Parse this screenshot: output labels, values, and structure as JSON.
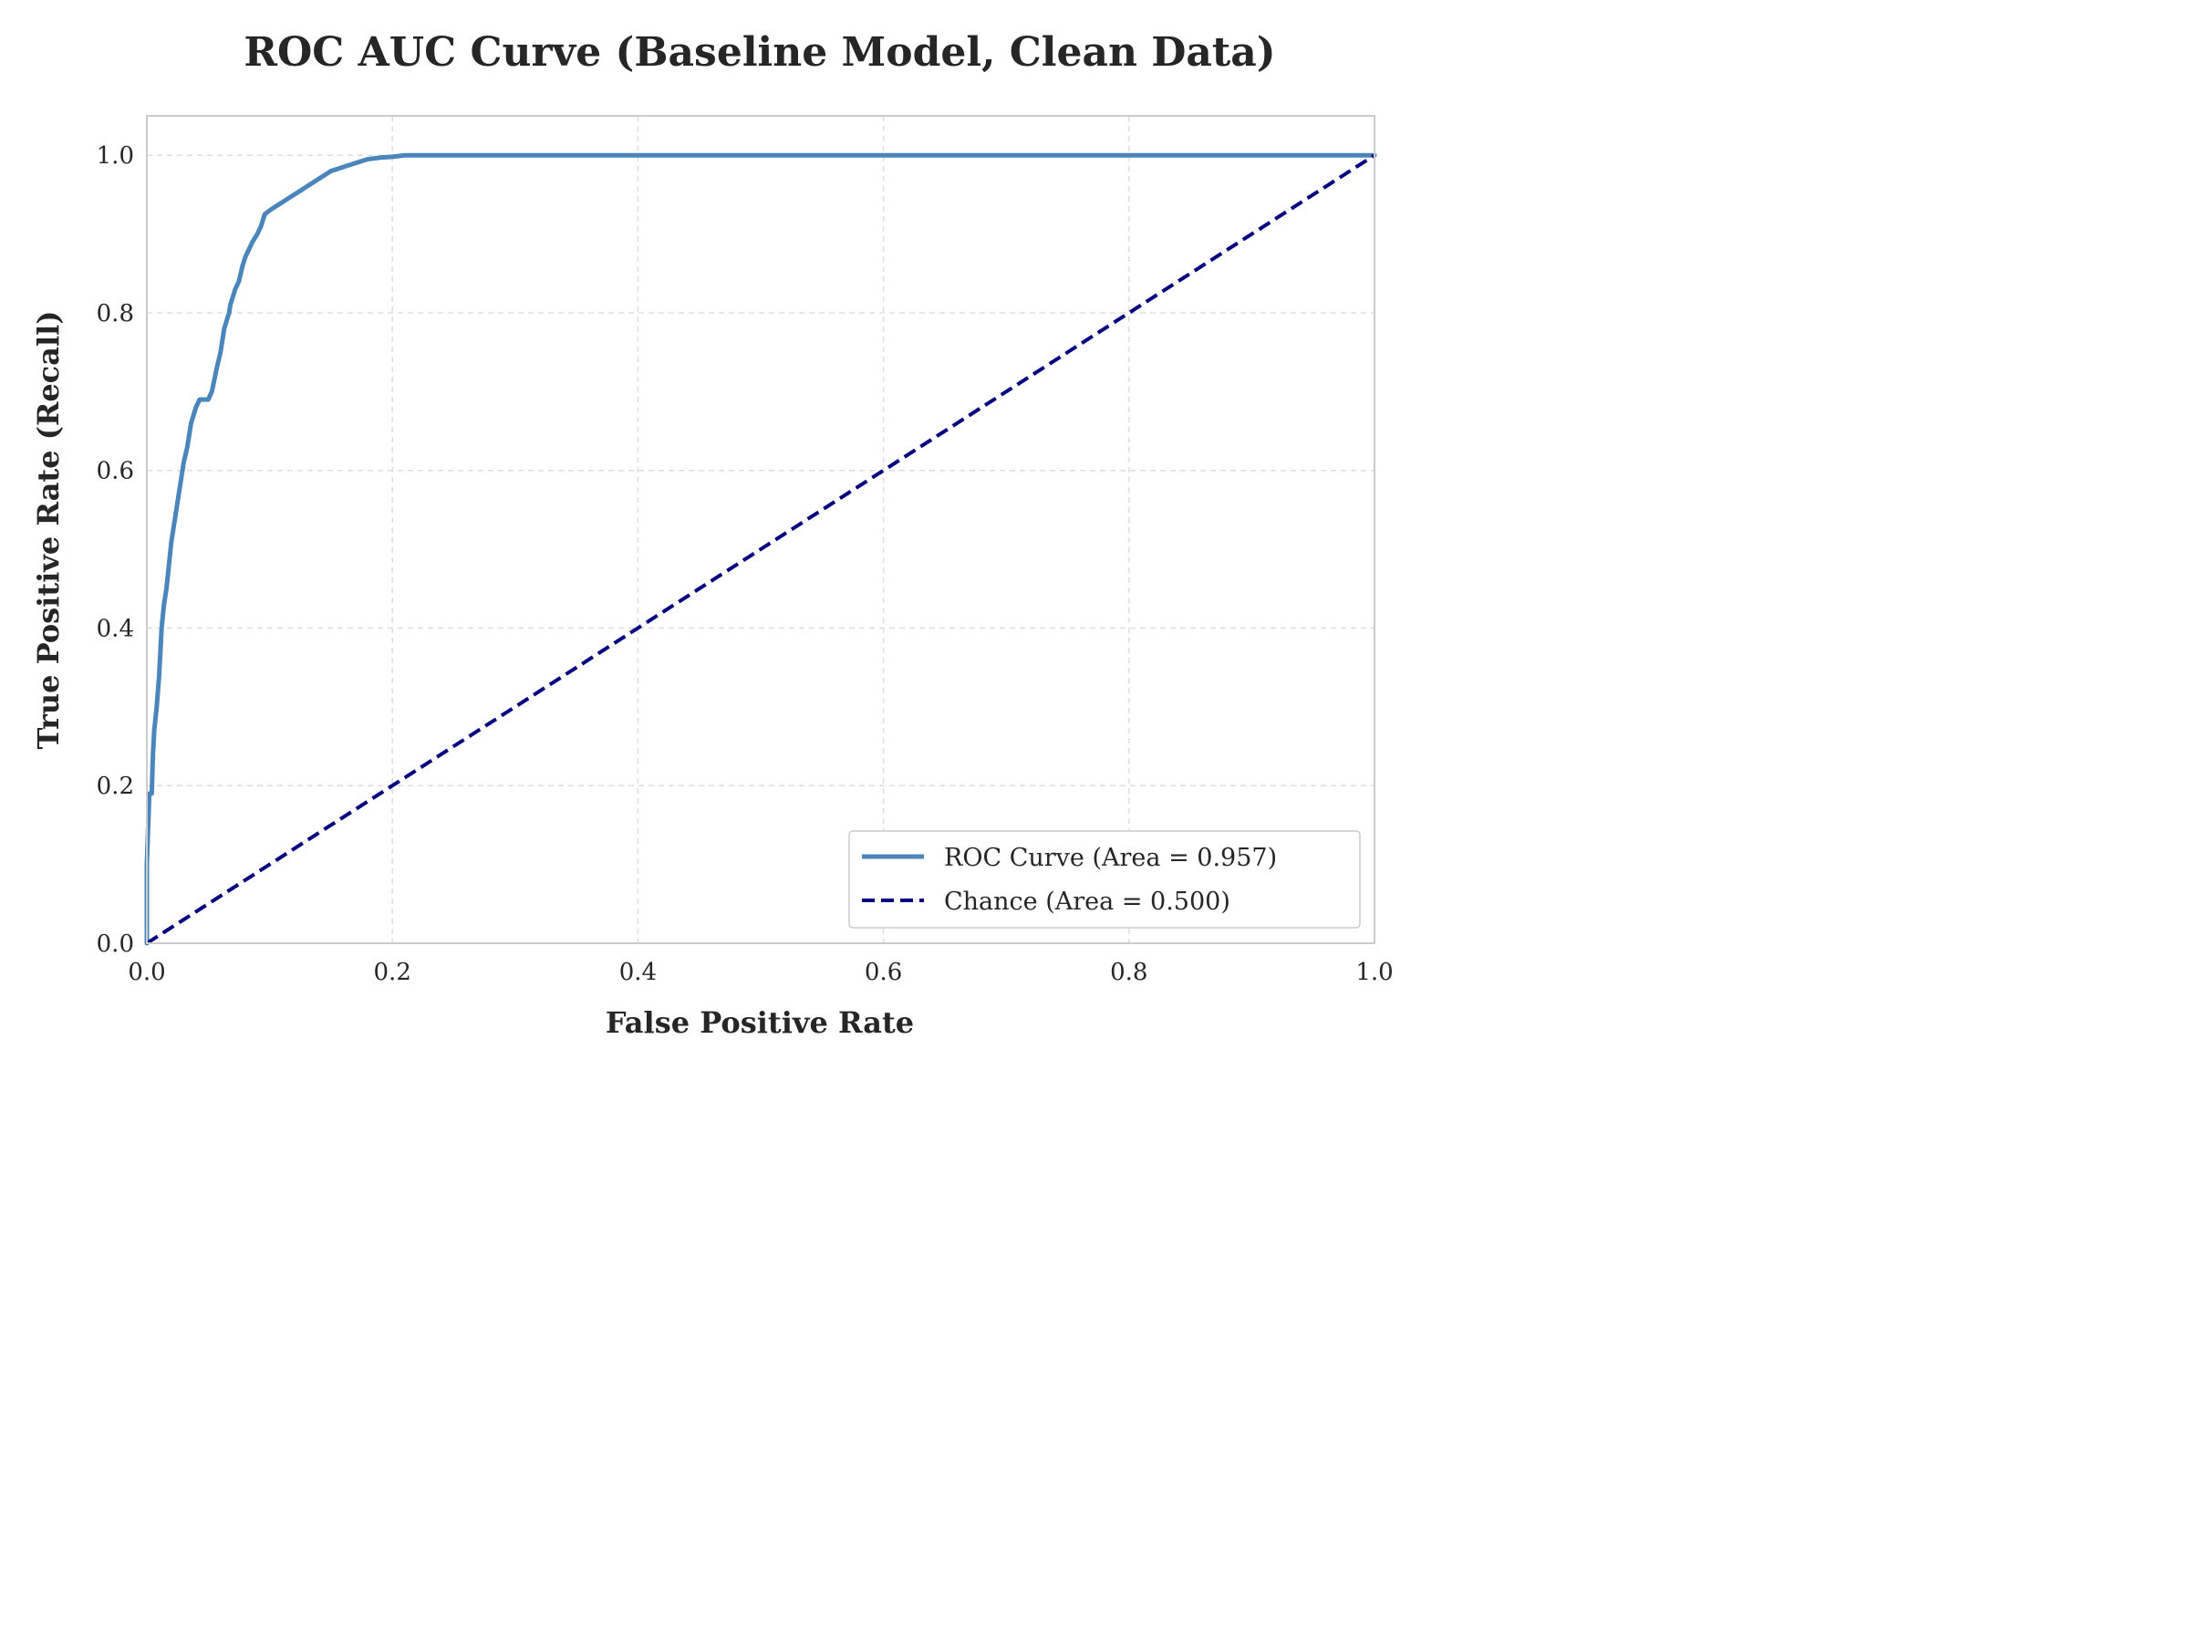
{
  "colors": {
    "roc": "#4a86bb",
    "chance": "#000080",
    "grid": "#dddddd",
    "frame": "#cccccc",
    "text": "#262626"
  },
  "chart_data": {
    "type": "line",
    "title": "ROC AUC Curve (Baseline Model, Clean Data)",
    "xlabel": "False Positive Rate",
    "ylabel": "True Positive Rate (Recall)",
    "xlim": [
      0.0,
      1.0
    ],
    "ylim": [
      0.0,
      1.05
    ],
    "x_ticks": [
      "0.0",
      "0.2",
      "0.4",
      "0.6",
      "0.8",
      "1.0"
    ],
    "y_ticks": [
      "0.0",
      "0.2",
      "0.4",
      "0.6",
      "0.8",
      "1.0"
    ],
    "grid": true,
    "grid_style": "dashed",
    "legend_position": "lower-right",
    "series": [
      {
        "name": "ROC Curve (Area = 0.957)",
        "style": "solid",
        "color": "#4a86bb",
        "x": [
          0.0,
          0.0,
          0.002,
          0.004,
          0.005,
          0.006,
          0.008,
          0.01,
          0.012,
          0.014,
          0.016,
          0.018,
          0.02,
          0.023,
          0.026,
          0.03,
          0.033,
          0.036,
          0.04,
          0.043,
          0.046,
          0.05,
          0.053,
          0.057,
          0.06,
          0.063,
          0.065,
          0.067,
          0.068,
          0.07,
          0.072,
          0.075,
          0.078,
          0.08,
          0.083,
          0.086,
          0.09,
          0.093,
          0.096,
          0.1,
          0.105,
          0.11,
          0.115,
          0.12,
          0.125,
          0.13,
          0.14,
          0.15,
          0.16,
          0.17,
          0.18,
          0.19,
          0.2,
          0.205,
          0.21,
          0.22,
          0.25,
          0.3,
          0.4,
          0.5,
          0.6,
          0.7,
          0.8,
          0.9,
          1.0
        ],
        "y": [
          0.0,
          0.1,
          0.19,
          0.19,
          0.24,
          0.27,
          0.3,
          0.34,
          0.4,
          0.43,
          0.45,
          0.48,
          0.51,
          0.54,
          0.57,
          0.61,
          0.63,
          0.66,
          0.68,
          0.69,
          0.69,
          0.69,
          0.7,
          0.73,
          0.75,
          0.78,
          0.79,
          0.8,
          0.81,
          0.82,
          0.83,
          0.84,
          0.86,
          0.87,
          0.88,
          0.89,
          0.9,
          0.91,
          0.925,
          0.93,
          0.935,
          0.94,
          0.945,
          0.95,
          0.955,
          0.96,
          0.97,
          0.98,
          0.985,
          0.99,
          0.995,
          0.997,
          0.998,
          0.999,
          1.0,
          1.0,
          1.0,
          1.0,
          1.0,
          1.0,
          1.0,
          1.0,
          1.0,
          1.0,
          1.0
        ]
      },
      {
        "name": "Chance (Area = 0.500)",
        "style": "dashed",
        "color": "#000080",
        "x": [
          0.0,
          1.0
        ],
        "y": [
          0.0,
          1.0
        ]
      }
    ]
  }
}
